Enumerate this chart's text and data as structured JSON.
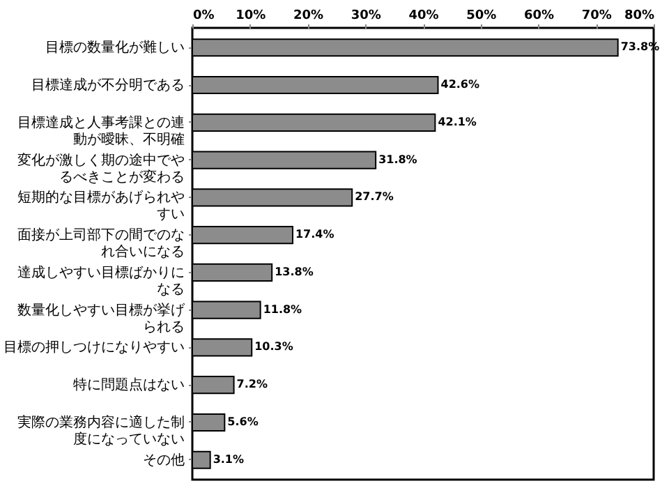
{
  "chart_data": {
    "type": "bar",
    "orientation": "horizontal",
    "categories": [
      "目標の数量化が難しい",
      "目標達成が不分明である",
      "目標達成と人事考課との連動が曖昧、不明確",
      "変化が激しく期の途中でやるべきことが変わる",
      "短期的な目標があげられやすい",
      "面接が上司部下の間でのなれ合いになる",
      "達成しやすい目標ばかりになる",
      "数量化しやすい目標が挙げられる",
      "目標の押しつけになりやすい",
      "特に問題点はない",
      "実際の業務内容に適した制度になっていない",
      "その他"
    ],
    "values": [
      73.8,
      42.6,
      42.1,
      31.8,
      27.7,
      17.4,
      13.8,
      11.8,
      10.3,
      7.2,
      5.6,
      3.1
    ],
    "value_labels": [
      "73.8%",
      "42.6%",
      "42.1%",
      "31.8%",
      "27.7%",
      "17.4%",
      "13.8%",
      "11.8%",
      "10.3%",
      "7.2%",
      "5.6%",
      "3.1%"
    ],
    "color": "#8c8c8c",
    "xlim": [
      0,
      80
    ],
    "xticks": [
      {
        "value": 0,
        "label": "0%"
      },
      {
        "value": 10,
        "label": "10%"
      },
      {
        "value": 20,
        "label": "20%"
      },
      {
        "value": 30,
        "label": "30%"
      },
      {
        "value": 40,
        "label": "40%"
      },
      {
        "value": 50,
        "label": "50%"
      },
      {
        "value": 60,
        "label": "60%"
      },
      {
        "value": 70,
        "label": "70%"
      },
      {
        "value": 80,
        "label": "80%"
      }
    ],
    "grid": false
  }
}
